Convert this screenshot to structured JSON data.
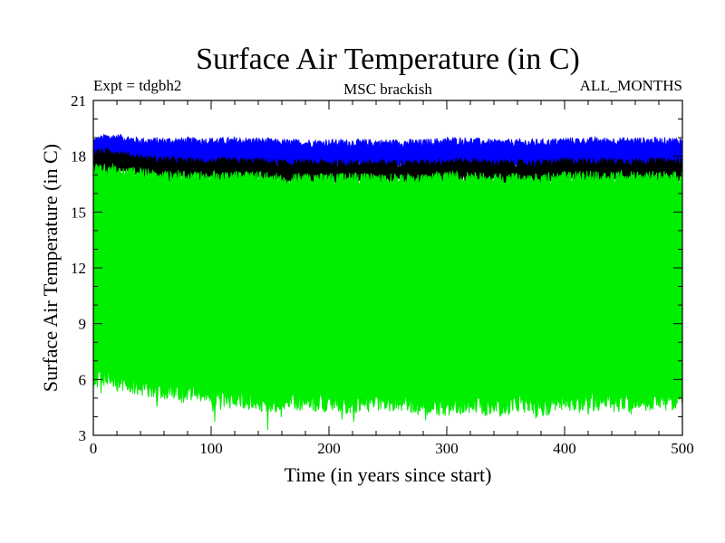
{
  "chart_data": {
    "type": "area",
    "title": "Surface Air Temperature (in C)",
    "subtitle_left": "Expt = tdgbh2",
    "subtitle_center": "MSC brackish",
    "subtitle_right": "ALL_MONTHS",
    "xlabel": "Time (in years since start)",
    "ylabel": "Surface Air Temperature (in C)",
    "xlim": [
      0,
      500
    ],
    "ylim": [
      3,
      21
    ],
    "x_ticks": [
      0,
      100,
      200,
      300,
      400,
      500
    ],
    "x_tick_labels": [
      "0",
      "100",
      "200",
      "300",
      "400",
      "500"
    ],
    "y_ticks": [
      3,
      6,
      9,
      12,
      15,
      18,
      21
    ],
    "y_tick_labels": [
      "3",
      "6",
      "9",
      "12",
      "15",
      "18",
      "21"
    ],
    "grid": false,
    "series": [
      {
        "color": "#0000ff",
        "x": [
          0,
          10,
          20,
          30,
          40,
          50,
          60,
          80,
          100,
          120,
          140,
          160,
          180,
          200,
          220,
          240,
          260,
          280,
          300,
          320,
          340,
          360,
          380,
          400,
          420,
          440,
          460,
          480,
          500
        ],
        "upper": [
          18.8,
          19.0,
          19.0,
          18.9,
          18.8,
          18.8,
          18.8,
          18.8,
          18.8,
          18.8,
          18.8,
          18.7,
          18.7,
          18.7,
          18.7,
          18.7,
          18.7,
          18.7,
          18.8,
          18.8,
          18.7,
          18.7,
          18.7,
          18.8,
          18.8,
          18.8,
          18.8,
          18.8,
          18.8
        ],
        "lower": [
          17.9,
          17.9,
          17.9,
          17.8,
          17.8,
          17.7,
          17.7,
          17.6,
          17.6,
          17.6,
          17.6,
          17.5,
          17.5,
          17.5,
          17.5,
          17.5,
          17.5,
          17.5,
          17.6,
          17.6,
          17.5,
          17.5,
          17.5,
          17.6,
          17.6,
          17.6,
          17.6,
          17.6,
          17.6
        ]
      },
      {
        "color": "#000000",
        "x": [
          0,
          10,
          20,
          30,
          40,
          50,
          60,
          80,
          100,
          120,
          140,
          160,
          180,
          200,
          220,
          240,
          260,
          280,
          300,
          320,
          340,
          360,
          380,
          400,
          420,
          440,
          460,
          480,
          500
        ],
        "upper": [
          18.2,
          18.2,
          18.2,
          18.0,
          17.9,
          17.8,
          17.8,
          17.7,
          17.7,
          17.7,
          17.7,
          17.6,
          17.6,
          17.6,
          17.6,
          17.6,
          17.6,
          17.6,
          17.7,
          17.7,
          17.6,
          17.6,
          17.6,
          17.7,
          17.7,
          17.7,
          17.7,
          17.7,
          17.7
        ],
        "lower": [
          17.2,
          17.2,
          17.2,
          17.1,
          17.0,
          16.9,
          16.9,
          16.8,
          16.8,
          16.8,
          16.8,
          16.7,
          16.7,
          16.7,
          16.7,
          16.7,
          16.7,
          16.7,
          16.8,
          16.8,
          16.7,
          16.7,
          16.7,
          16.8,
          16.8,
          16.8,
          16.8,
          16.8,
          16.8
        ]
      },
      {
        "color": "#00ee00",
        "x": [
          0,
          10,
          20,
          30,
          40,
          50,
          60,
          80,
          100,
          120,
          140,
          160,
          180,
          200,
          220,
          240,
          260,
          280,
          300,
          320,
          340,
          360,
          380,
          400,
          420,
          440,
          460,
          480,
          500
        ],
        "upper": [
          17.3,
          17.3,
          17.3,
          17.2,
          17.1,
          17.0,
          17.0,
          16.9,
          16.9,
          16.9,
          16.9,
          16.8,
          16.8,
          16.8,
          16.8,
          16.8,
          16.8,
          16.8,
          16.9,
          16.9,
          16.8,
          16.8,
          16.8,
          16.9,
          16.9,
          16.9,
          16.9,
          16.9,
          16.9
        ],
        "lower": [
          6.3,
          6.2,
          6.0,
          5.9,
          5.7,
          5.6,
          5.5,
          5.3,
          5.2,
          5.0,
          4.9,
          4.7,
          4.9,
          4.8,
          4.7,
          4.8,
          4.9,
          4.7,
          4.6,
          4.8,
          4.5,
          4.8,
          4.6,
          4.9,
          4.9,
          4.8,
          4.9,
          4.9,
          5.0
        ]
      }
    ]
  }
}
